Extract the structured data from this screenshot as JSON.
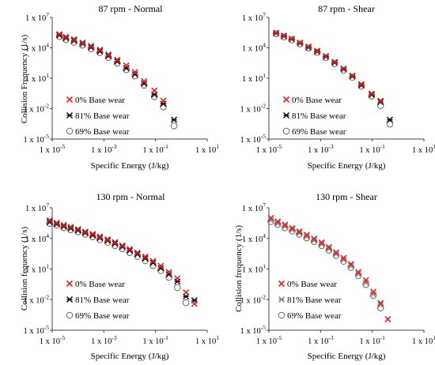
{
  "chart_data": [
    {
      "type": "scatter",
      "title": "87 rpm - Normal",
      "xlabel": "Specific Energy (J/kg)",
      "ylabel": "Collision Frequency (1/s)",
      "x_scale": "log",
      "y_scale": "log",
      "xlim": [
        1e-05,
        10
      ],
      "ylim": [
        1e-05,
        10000000.0
      ],
      "x_ticks": [
        {
          "base": "1 x 10",
          "exp": "-5"
        },
        {
          "base": "1 x 10",
          "exp": "-3"
        },
        {
          "base": "1 x 10",
          "exp": "-1"
        },
        {
          "base": "1 x 10",
          "exp": "1"
        }
      ],
      "y_ticks": [
        {
          "base": "1 x 10",
          "exp": "7"
        },
        {
          "base": "1 x 10",
          "exp": "4"
        },
        {
          "base": "1 x 10",
          "exp": "1"
        },
        {
          "base": "1 x 10",
          "exp": "-2"
        },
        {
          "base": "1 x 10",
          "exp": "-5"
        }
      ],
      "legend_position": "bottom-left",
      "series": [
        {
          "name": "0% Base wear",
          "marker": "x",
          "color": "#e02020",
          "x": [
            1.9e-05,
            3.4e-05,
            7e-05,
            0.00015,
            0.00032,
            0.0007,
            0.0015,
            0.0033,
            0.0074,
            0.016,
            0.036,
            0.09,
            0.2
          ],
          "y": [
            220000,
            120000,
            70000,
            32000,
            15000,
            6400,
            2200,
            650,
            180,
            40,
            5,
            0.6,
            0.06
          ]
        },
        {
          "name": "81% Base wear",
          "marker": "star",
          "color": "#111111",
          "x": [
            1.9e-05,
            3.4e-05,
            7e-05,
            0.00015,
            0.00032,
            0.0007,
            0.0015,
            0.0033,
            0.0074,
            0.016,
            0.036,
            0.09,
            0.2,
            0.52
          ],
          "y": [
            170000,
            90000,
            50000,
            25000,
            11000,
            4500,
            1600,
            450,
            100,
            24,
            3,
            0.25,
            0.03,
            0.0008
          ]
        },
        {
          "name": "69% Base wear",
          "marker": "circle",
          "color": "#666666",
          "x": [
            1.9e-05,
            3.4e-05,
            7e-05,
            0.00015,
            0.00032,
            0.0007,
            0.0015,
            0.0033,
            0.0074,
            0.016,
            0.036,
            0.09,
            0.2,
            0.52
          ],
          "y": [
            130000,
            65000,
            35000,
            18000,
            8000,
            3300,
            1100,
            300,
            70,
            17,
            2,
            0.15,
            0.015,
            0.0002
          ]
        }
      ]
    },
    {
      "type": "scatter",
      "title": "87 rpm - Shear",
      "xlabel": "Specific Energy (J/kg)",
      "ylabel": "",
      "x_scale": "log",
      "y_scale": "log",
      "xlim": [
        1e-05,
        10
      ],
      "ylim": [
        1e-05,
        10000000.0
      ],
      "x_ticks": [
        {
          "base": "1 x 10",
          "exp": "-5"
        },
        {
          "base": "1 x 10",
          "exp": "-3"
        },
        {
          "base": "1 x 10",
          "exp": "-1"
        },
        {
          "base": "1 x 10",
          "exp": "1"
        }
      ],
      "y_ticks": [
        {
          "base": "1 x 10",
          "exp": "7"
        },
        {
          "base": "1 x 10",
          "exp": "4"
        },
        {
          "base": "1 x 10",
          "exp": "1"
        },
        {
          "base": "1 x 10",
          "exp": "-2"
        },
        {
          "base": "1 x 10",
          "exp": "-5"
        }
      ],
      "legend_position": "bottom-left",
      "series": [
        {
          "name": "0% Base wear",
          "marker": "x",
          "color": "#e02020",
          "x": [
            1.9e-05,
            3.8e-05,
            7.6e-05,
            0.00016,
            0.00034,
            0.00074,
            0.0016,
            0.0035,
            0.0078,
            0.017,
            0.038,
            0.095,
            0.21
          ],
          "y": [
            300000,
            160000,
            80000,
            32000,
            13000,
            5000,
            1500,
            400,
            90,
            18,
            2.5,
            0.3,
            0.06
          ]
        },
        {
          "name": "81% Base wear",
          "marker": "star",
          "color": "#111111",
          "x": [
            1.9e-05,
            3.8e-05,
            7.6e-05,
            0.00016,
            0.00034,
            0.00074,
            0.0016,
            0.0035,
            0.0078,
            0.017,
            0.038,
            0.095,
            0.21,
            0.48
          ],
          "y": [
            270000,
            140000,
            70000,
            28000,
            11000,
            4200,
            1300,
            340,
            75,
            15,
            2.0,
            0.23,
            0.045,
            0.0008
          ]
        },
        {
          "name": "69% Base wear",
          "marker": "circle",
          "color": "#666666",
          "x": [
            1.9e-05,
            3.8e-05,
            7.6e-05,
            0.00016,
            0.00034,
            0.00074,
            0.0016,
            0.0035,
            0.0078,
            0.017,
            0.038,
            0.095,
            0.21,
            0.48
          ],
          "y": [
            240000,
            120000,
            60000,
            24000,
            9500,
            3600,
            1100,
            280,
            60,
            12,
            1.6,
            0.17,
            0.02,
            0.0003
          ]
        }
      ]
    },
    {
      "type": "scatter",
      "title": "130 rpm - Normal",
      "xlabel": "Specific Energy (J/kg)",
      "ylabel": "Collision fequency (1/s)",
      "x_scale": "log",
      "y_scale": "log",
      "xlim": [
        1e-05,
        10
      ],
      "ylim": [
        1e-05,
        10000000.0
      ],
      "x_ticks": [
        {
          "base": "1 x 10",
          "exp": "-5"
        },
        {
          "base": "1 x 10",
          "exp": "-3"
        },
        {
          "base": "1 x 10",
          "exp": "-1"
        },
        {
          "base": "1 x 10",
          "exp": "1"
        }
      ],
      "y_ticks": [
        {
          "base": "1 x 10",
          "exp": "7"
        },
        {
          "base": "1 x 10",
          "exp": "4"
        },
        {
          "base": "1 x 10",
          "exp": "1"
        },
        {
          "base": "1 x 10",
          "exp": "-2"
        },
        {
          "base": "1 x 10",
          "exp": "-5"
        }
      ],
      "legend_position": "bottom-left",
      "series": [
        {
          "name": "0% Base wear",
          "marker": "x",
          "color": "#e02020",
          "x": [
            8e-06,
            1.5e-05,
            2.8e-05,
            5.2e-05,
            0.0001,
            0.00019,
            0.00037,
            0.0007,
            0.0014,
            0.0027,
            0.0052,
            0.01,
            0.02,
            0.04,
            0.08,
            0.16,
            0.33,
            0.7,
            1.5,
            3.2
          ],
          "y": [
            600000,
            330000,
            200000,
            130000,
            80000,
            45000,
            27000,
            15000,
            8000,
            4200,
            2000,
            900,
            400,
            160,
            60,
            20,
            5,
            1.2,
            0.05,
            0.004
          ]
        },
        {
          "name": "81% Base wear",
          "marker": "star",
          "color": "#111111",
          "x": [
            8e-06,
            1.5e-05,
            2.8e-05,
            5.2e-05,
            0.0001,
            0.00019,
            0.00037,
            0.0007,
            0.0014,
            0.0027,
            0.0052,
            0.01,
            0.02,
            0.04,
            0.08,
            0.16,
            0.33,
            0.7,
            1.5,
            3.2
          ],
          "y": [
            400000,
            250000,
            150000,
            95000,
            60000,
            34000,
            20000,
            11000,
            6000,
            3100,
            1500,
            650,
            280,
            110,
            40,
            12,
            3,
            0.6,
            0.02,
            0.0085
          ]
        },
        {
          "name": "69% Base wear",
          "marker": "circle",
          "color": "#666666",
          "x": [
            8e-06,
            1.5e-05,
            2.8e-05,
            5.2e-05,
            0.0001,
            0.00019,
            0.00037,
            0.0007,
            0.0014,
            0.0027,
            0.0052,
            0.01,
            0.02,
            0.04,
            0.08,
            0.16,
            0.33,
            0.7,
            1.5
          ],
          "y": [
            300000,
            190000,
            110000,
            70000,
            45000,
            25000,
            14000,
            7500,
            4000,
            2000,
            950,
            400,
            170,
            65,
            22,
            7,
            1.5,
            0.15,
            0.005
          ]
        }
      ]
    },
    {
      "type": "scatter",
      "title": "130 rpm - Shear",
      "xlabel": "Specific Energy (J/kg)",
      "ylabel": "Collision frequency (1/s)",
      "x_scale": "log",
      "y_scale": "log",
      "xlim": [
        1e-05,
        10
      ],
      "ylim": [
        1e-05,
        10000000.0
      ],
      "x_ticks": [
        {
          "base": "1 x 10",
          "exp": "-5"
        },
        {
          "base": "1 x 10",
          "exp": "-3"
        },
        {
          "base": "1 x 10",
          "exp": "-1"
        },
        {
          "base": "1 x 10",
          "exp": "1"
        }
      ],
      "y_ticks": [
        {
          "base": "1 x 10",
          "exp": "7"
        },
        {
          "base": "1 x 10",
          "exp": "4"
        },
        {
          "base": "1 x 10",
          "exp": "1"
        },
        {
          "base": "1 x 10",
          "exp": "-2"
        },
        {
          "base": "1 x 10",
          "exp": "-5"
        }
      ],
      "legend_position": "bottom-left",
      "series": [
        {
          "name": "0% Base wear",
          "marker": "x",
          "color": "#e02020",
          "x": [
            1.2e-05,
            2.2e-05,
            4.2e-05,
            8e-05,
            0.00015,
            0.00029,
            0.00056,
            0.0011,
            0.0021,
            0.004,
            0.0078,
            0.015,
            0.029,
            0.057,
            0.11,
            0.21,
            0.4
          ],
          "y": [
            1000000,
            450000,
            220000,
            100000,
            47000,
            22000,
            9500,
            4000,
            1400,
            430,
            120,
            30,
            5,
            0.8,
            0.06,
            0.0045,
            0.00012
          ]
        },
        {
          "name": "81% Base wear",
          "marker": "star",
          "color": "#888888",
          "x": [
            1.2e-05,
            2.2e-05,
            4.2e-05,
            8e-05,
            0.00015,
            0.00029,
            0.00056,
            0.0011,
            0.0021,
            0.004,
            0.0078,
            0.015,
            0.029,
            0.057,
            0.11,
            0.21
          ],
          "y": [
            600000,
            300000,
            150000,
            70000,
            33000,
            15000,
            6500,
            2700,
            950,
            290,
            80,
            20,
            3.2,
            0.45,
            0.035,
            0.003
          ]
        },
        {
          "name": "69% Base wear",
          "marker": "circle",
          "color": "#666666",
          "x": [
            1.2e-05,
            2.2e-05,
            4.2e-05,
            8e-05,
            0.00015,
            0.00029,
            0.00056,
            0.0011,
            0.0021,
            0.004,
            0.0078,
            0.015,
            0.029,
            0.057,
            0.11,
            0.21
          ],
          "y": [
            450000,
            230000,
            110000,
            52000,
            25000,
            11000,
            4800,
            2000,
            700,
            210,
            58,
            14,
            2.3,
            0.3,
            0.025,
            0.0015
          ]
        }
      ]
    }
  ]
}
